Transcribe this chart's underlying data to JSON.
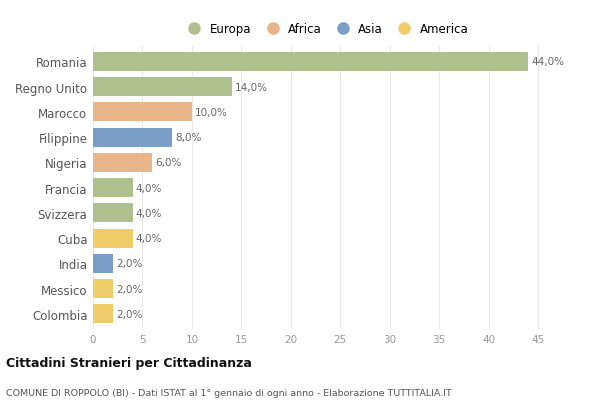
{
  "categories": [
    "Romania",
    "Regno Unito",
    "Marocco",
    "Filippine",
    "Nigeria",
    "Francia",
    "Svizzera",
    "Cuba",
    "India",
    "Messico",
    "Colombia"
  ],
  "values": [
    44.0,
    14.0,
    10.0,
    8.0,
    6.0,
    4.0,
    4.0,
    4.0,
    2.0,
    2.0,
    2.0
  ],
  "continents": [
    "Europa",
    "Europa",
    "Africa",
    "Asia",
    "Africa",
    "Europa",
    "Europa",
    "America",
    "Asia",
    "America",
    "America"
  ],
  "colors": {
    "Europa": "#adc08d",
    "Africa": "#e8b48a",
    "Asia": "#7b9ec8",
    "America": "#f0cc6a"
  },
  "legend_order": [
    "Europa",
    "Africa",
    "Asia",
    "America"
  ],
  "title": "Cittadini Stranieri per Cittadinanza",
  "subtitle": "COMUNE DI ROPPOLO (BI) - Dati ISTAT al 1° gennaio di ogni anno - Elaborazione TUTTITALIA.IT",
  "xlim": [
    0,
    47
  ],
  "xticks": [
    0,
    5,
    10,
    15,
    20,
    25,
    30,
    35,
    40,
    45
  ],
  "background_color": "#ffffff",
  "grid_color": "#e8e8e8",
  "bar_height": 0.75
}
